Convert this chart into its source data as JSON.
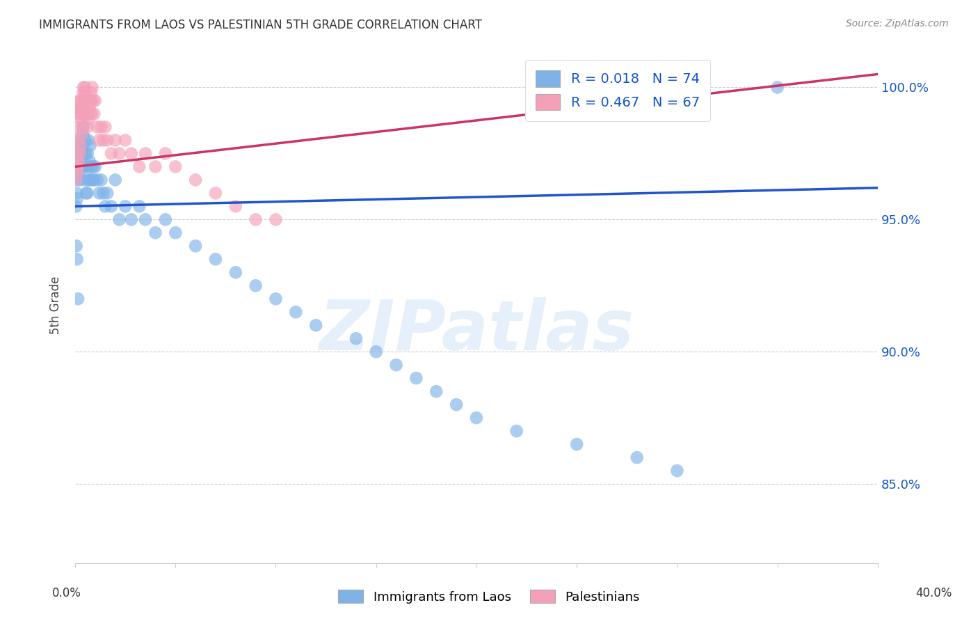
{
  "title": "IMMIGRANTS FROM LAOS VS PALESTINIAN 5TH GRADE CORRELATION CHART",
  "source": "Source: ZipAtlas.com",
  "ylabel": "5th Grade",
  "xlim": [
    0.0,
    40.0
  ],
  "ylim": [
    82.0,
    101.5
  ],
  "blue_color": "#7fb3e8",
  "pink_color": "#f4a0b8",
  "blue_line_color": "#2255cc",
  "pink_line_color": "#cc3366",
  "R_blue": 0.018,
  "N_blue": 74,
  "R_pink": 0.467,
  "N_pink": 67,
  "legend_R_color": "#1155cc",
  "legend_N_color": "#cc0000",
  "right_ytick_vals": [
    85.0,
    90.0,
    95.0,
    100.0
  ],
  "right_ytick_labels": [
    "85.0%",
    "90.0%",
    "95.0%",
    "100.0%"
  ],
  "grid_color": "#cccccc",
  "background_color": "#ffffff",
  "watermark": "ZIPatlas",
  "blue_scatter_x": [
    0.05,
    0.08,
    0.1,
    0.12,
    0.15,
    0.18,
    0.2,
    0.22,
    0.25,
    0.28,
    0.3,
    0.33,
    0.35,
    0.38,
    0.4,
    0.42,
    0.45,
    0.48,
    0.5,
    0.52,
    0.55,
    0.58,
    0.6,
    0.62,
    0.65,
    0.68,
    0.7,
    0.72,
    0.75,
    0.78,
    0.8,
    0.85,
    0.9,
    0.95,
    1.0,
    1.1,
    1.2,
    1.3,
    1.4,
    1.5,
    1.6,
    1.8,
    2.0,
    2.2,
    2.5,
    2.8,
    3.2,
    3.5,
    4.0,
    4.5,
    5.0,
    6.0,
    7.0,
    8.0,
    9.0,
    10.0,
    11.0,
    12.0,
    14.0,
    15.0,
    16.0,
    17.0,
    18.0,
    19.0,
    20.0,
    22.0,
    25.0,
    28.0,
    30.0,
    35.0,
    0.06,
    0.09,
    0.14,
    0.55
  ],
  "blue_scatter_y": [
    95.5,
    96.0,
    95.8,
    97.0,
    96.5,
    97.5,
    96.8,
    97.2,
    98.0,
    97.8,
    96.5,
    97.0,
    97.5,
    97.8,
    98.2,
    98.5,
    97.0,
    97.5,
    98.0,
    97.5,
    96.5,
    97.0,
    96.0,
    97.5,
    98.0,
    97.0,
    96.5,
    97.2,
    97.8,
    96.5,
    97.0,
    96.5,
    97.0,
    96.5,
    97.0,
    96.5,
    96.0,
    96.5,
    96.0,
    95.5,
    96.0,
    95.5,
    96.5,
    95.0,
    95.5,
    95.0,
    95.5,
    95.0,
    94.5,
    95.0,
    94.5,
    94.0,
    93.5,
    93.0,
    92.5,
    92.0,
    91.5,
    91.0,
    90.5,
    90.0,
    89.5,
    89.0,
    88.5,
    88.0,
    87.5,
    87.0,
    86.5,
    86.0,
    85.5,
    100.0,
    94.0,
    93.5,
    92.0,
    96.0
  ],
  "pink_scatter_x": [
    0.05,
    0.08,
    0.1,
    0.12,
    0.15,
    0.18,
    0.2,
    0.22,
    0.25,
    0.28,
    0.3,
    0.33,
    0.35,
    0.38,
    0.4,
    0.42,
    0.45,
    0.48,
    0.5,
    0.55,
    0.6,
    0.65,
    0.7,
    0.75,
    0.8,
    0.85,
    0.9,
    0.95,
    1.0,
    1.1,
    1.2,
    1.3,
    1.4,
    1.5,
    1.6,
    1.8,
    2.0,
    2.2,
    2.5,
    2.8,
    3.2,
    3.5,
    4.0,
    4.5,
    5.0,
    6.0,
    7.0,
    8.0,
    9.0,
    10.0,
    0.06,
    0.09,
    0.13,
    0.17,
    0.23,
    0.27,
    0.32,
    0.36,
    0.43,
    0.47,
    0.52,
    0.57,
    0.62,
    0.67,
    0.72,
    0.77,
    0.82
  ],
  "pink_scatter_y": [
    97.0,
    97.5,
    98.0,
    98.5,
    99.0,
    99.2,
    99.5,
    99.0,
    99.2,
    99.5,
    98.8,
    99.0,
    99.2,
    99.5,
    99.8,
    100.0,
    99.5,
    99.8,
    100.0,
    99.5,
    99.0,
    99.5,
    99.0,
    99.5,
    99.8,
    100.0,
    99.5,
    99.0,
    99.5,
    98.5,
    98.0,
    98.5,
    98.0,
    98.5,
    98.0,
    97.5,
    98.0,
    97.5,
    98.0,
    97.5,
    97.0,
    97.5,
    97.0,
    97.5,
    97.0,
    96.5,
    96.0,
    95.5,
    95.0,
    95.0,
    96.5,
    97.0,
    96.8,
    97.2,
    97.5,
    97.8,
    98.2,
    98.5,
    99.0,
    99.2,
    99.5,
    99.0,
    98.5,
    98.8,
    99.2,
    99.5,
    99.0
  ]
}
